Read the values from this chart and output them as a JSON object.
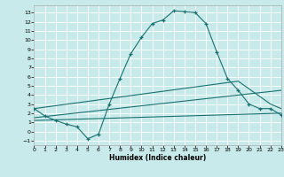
{
  "xlabel": "Humidex (Indice chaleur)",
  "background_color": "#c8eaea",
  "grid_color": "#ffffff",
  "line_color": "#1a7070",
  "xlim": [
    0,
    23
  ],
  "ylim": [
    -1.5,
    13.8
  ],
  "xticks": [
    0,
    1,
    2,
    3,
    4,
    5,
    6,
    7,
    8,
    9,
    10,
    11,
    12,
    13,
    14,
    15,
    16,
    17,
    18,
    19,
    20,
    21,
    22,
    23
  ],
  "yticks": [
    -1,
    0,
    1,
    2,
    3,
    4,
    5,
    6,
    7,
    8,
    9,
    10,
    11,
    12,
    13
  ],
  "main_x": [
    0,
    1,
    2,
    3,
    4,
    5,
    6,
    7,
    8,
    9,
    10,
    11,
    12,
    13,
    14,
    15,
    16,
    17,
    18,
    19,
    20,
    21,
    22,
    23
  ],
  "main_y": [
    2.5,
    1.7,
    1.2,
    0.8,
    0.5,
    -0.8,
    -0.3,
    3.0,
    5.8,
    8.5,
    10.3,
    11.8,
    12.2,
    13.2,
    13.1,
    13.0,
    11.8,
    8.7,
    5.8,
    4.5,
    3.0,
    2.5,
    2.5,
    1.8
  ],
  "upper_line_x": [
    0,
    19,
    22,
    23
  ],
  "upper_line_y": [
    2.5,
    5.5,
    3.0,
    2.5
  ],
  "mid_line_x": [
    0,
    23
  ],
  "mid_line_y": [
    1.5,
    4.5
  ],
  "lower_line_x": [
    0,
    23
  ],
  "lower_line_y": [
    1.2,
    2.0
  ]
}
